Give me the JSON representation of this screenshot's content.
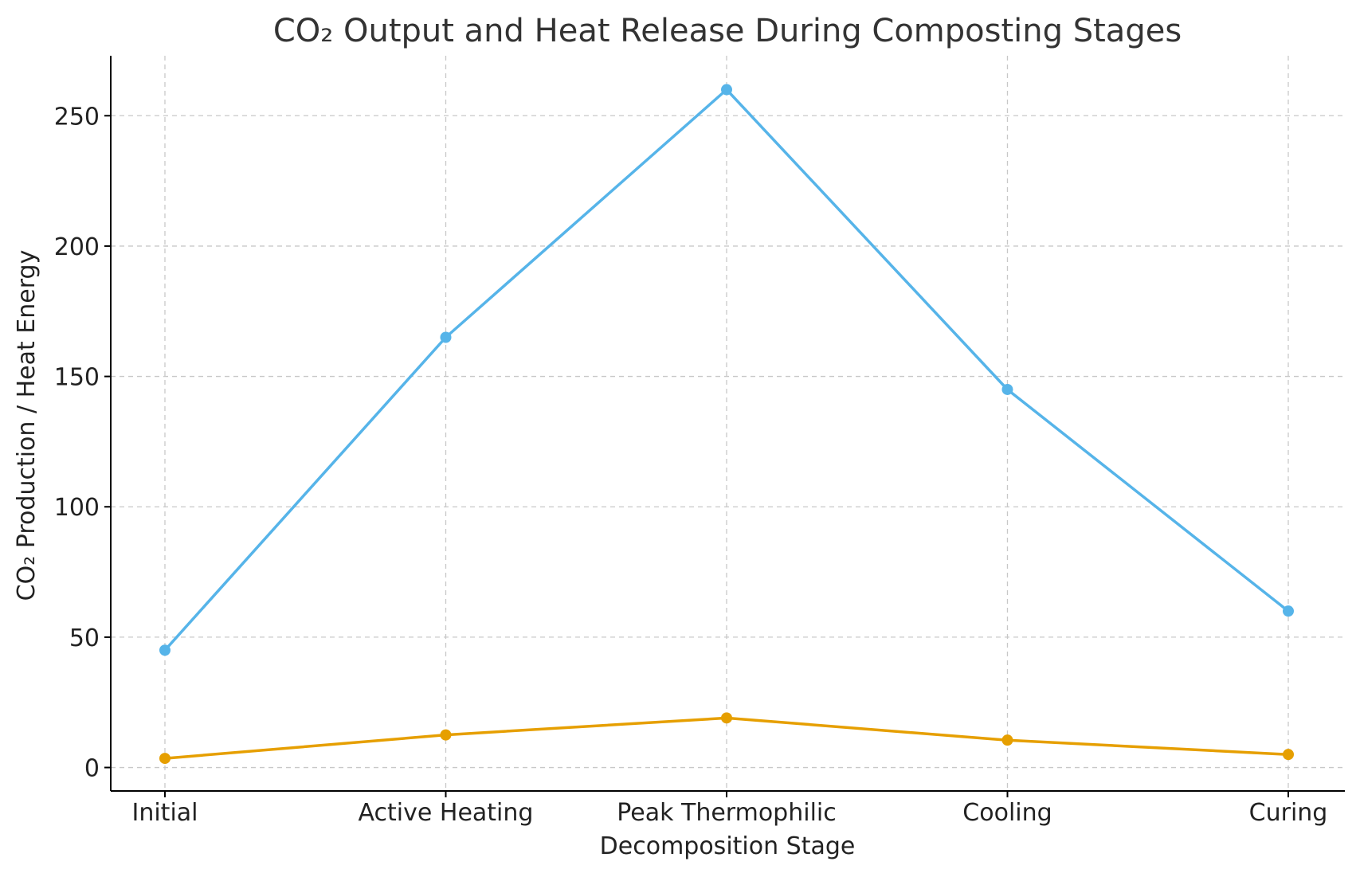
{
  "chart_data": {
    "type": "line",
    "title": "CO₂ Output and Heat Release During Composting Stages",
    "xlabel": "Decomposition Stage",
    "ylabel": "CO₂ Production / Heat Energy",
    "categories": [
      "Initial",
      "Active Heating",
      "Peak Thermophilic",
      "Cooling",
      "Curing"
    ],
    "series": [
      {
        "values": [
          45,
          165,
          260,
          145,
          60
        ],
        "color": "#56b4e9"
      },
      {
        "values": [
          3.5,
          12.5,
          19,
          10.5,
          5
        ],
        "color": "#e69f00"
      }
    ],
    "ylim": [
      -9,
      273
    ],
    "yticks": [
      0,
      50,
      100,
      150,
      200,
      250
    ],
    "grid": true
  }
}
